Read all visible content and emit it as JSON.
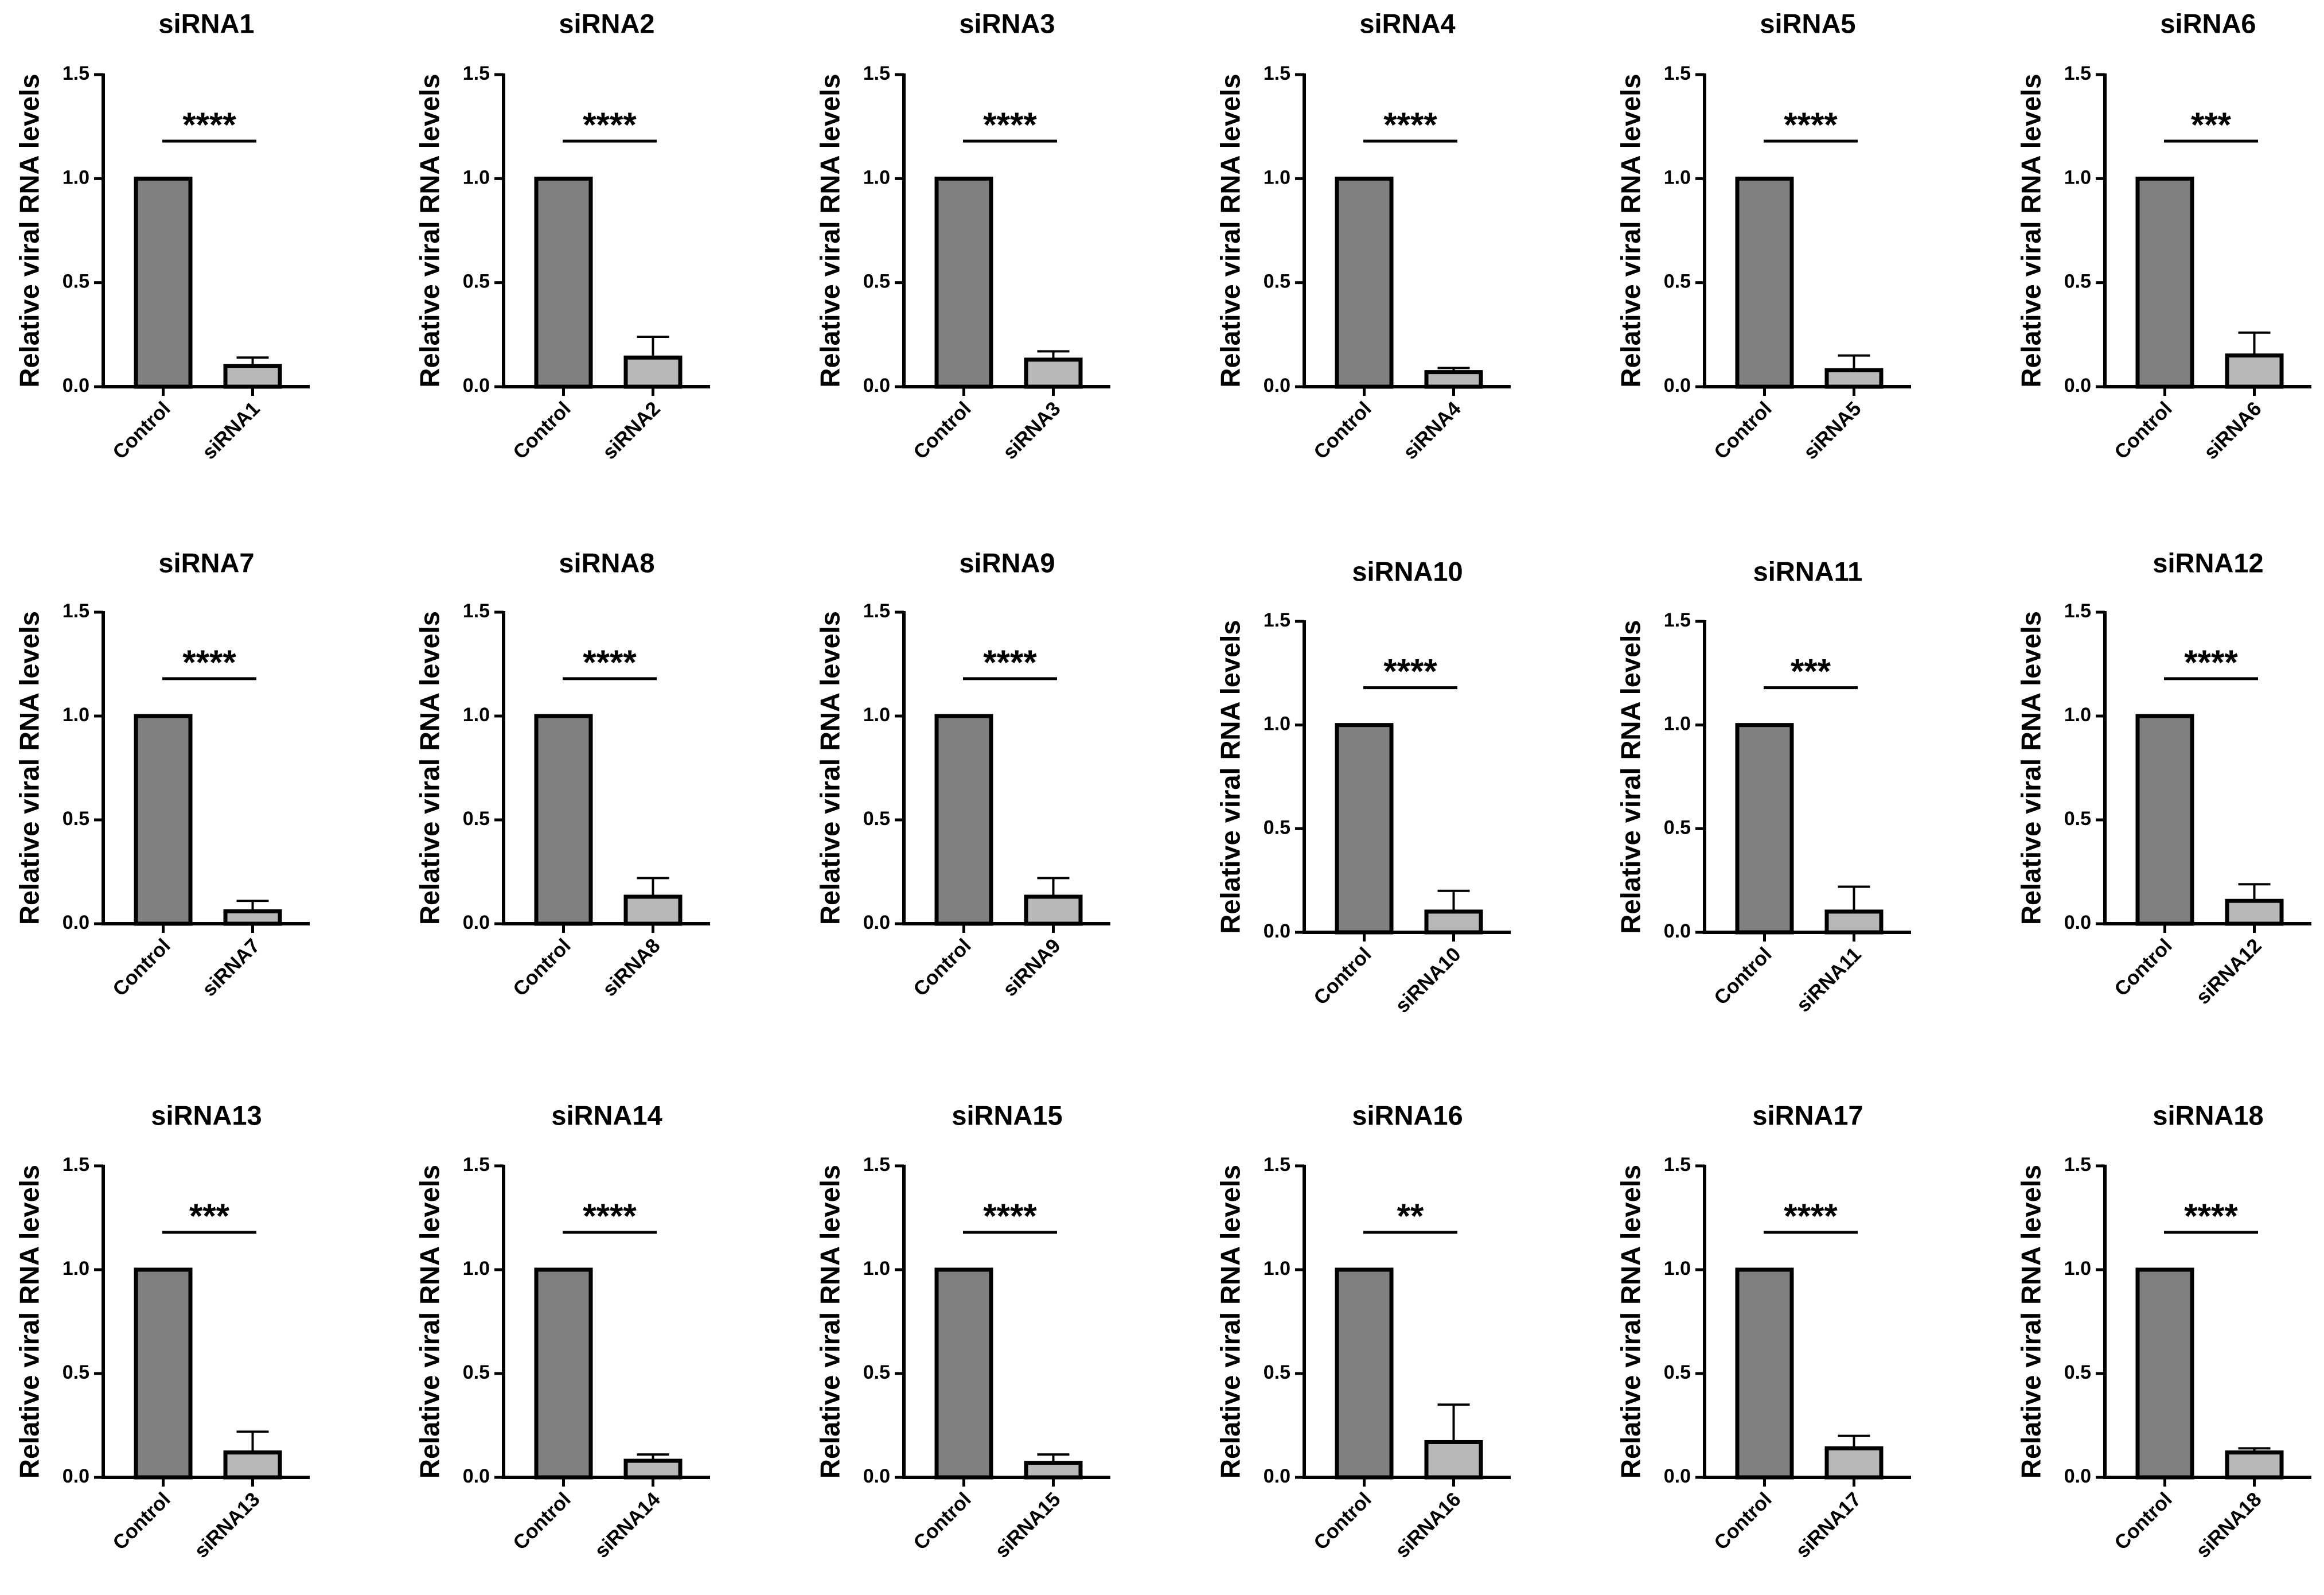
{
  "chart_data": [
    {
      "type": "bar",
      "title": "siRNA1",
      "ylabel": "Relative viral RNA levels",
      "categories": [
        "Control",
        "siRNA1"
      ],
      "values": [
        1.0,
        0.1
      ],
      "errors": [
        0,
        0.04
      ],
      "ylim": [
        0,
        1.5
      ],
      "yticks": [
        "0.0",
        "0.5",
        "1.0",
        "1.5"
      ],
      "significance": "****",
      "colors": [
        "#808080",
        "#b8b8b8"
      ]
    },
    {
      "type": "bar",
      "title": "siRNA2",
      "ylabel": "Relative viral RNA levels",
      "categories": [
        "Control",
        "siRNA2"
      ],
      "values": [
        1.0,
        0.14
      ],
      "errors": [
        0,
        0.1
      ],
      "ylim": [
        0,
        1.5
      ],
      "yticks": [
        "0.0",
        "0.5",
        "1.0",
        "1.5"
      ],
      "significance": "****",
      "colors": [
        "#808080",
        "#b8b8b8"
      ]
    },
    {
      "type": "bar",
      "title": "siRNA3",
      "ylabel": "Relative viral RNA levels",
      "categories": [
        "Control",
        "siRNA3"
      ],
      "values": [
        1.0,
        0.13
      ],
      "errors": [
        0,
        0.04
      ],
      "ylim": [
        0,
        1.5
      ],
      "yticks": [
        "0.0",
        "0.5",
        "1.0",
        "1.5"
      ],
      "significance": "****",
      "colors": [
        "#808080",
        "#b8b8b8"
      ]
    },
    {
      "type": "bar",
      "title": "siRNA4",
      "ylabel": "Relative viral RNA levels",
      "categories": [
        "Control",
        "siRNA4"
      ],
      "values": [
        1.0,
        0.07
      ],
      "errors": [
        0,
        0.02
      ],
      "ylim": [
        0,
        1.5
      ],
      "yticks": [
        "0.0",
        "0.5",
        "1.0",
        "1.5"
      ],
      "significance": "****",
      "colors": [
        "#808080",
        "#b8b8b8"
      ]
    },
    {
      "type": "bar",
      "title": "siRNA5",
      "ylabel": "Relative viral RNA levels",
      "categories": [
        "Control",
        "siRNA5"
      ],
      "values": [
        1.0,
        0.08
      ],
      "errors": [
        0,
        0.07
      ],
      "ylim": [
        0,
        1.5
      ],
      "yticks": [
        "0.0",
        "0.5",
        "1.0",
        "1.5"
      ],
      "significance": "****",
      "colors": [
        "#808080",
        "#b8b8b8"
      ]
    },
    {
      "type": "bar",
      "title": "siRNA6",
      "ylabel": "Relative viral RNA levels",
      "categories": [
        "Control",
        "siRNA6"
      ],
      "values": [
        1.0,
        0.15
      ],
      "errors": [
        0,
        0.11
      ],
      "ylim": [
        0,
        1.5
      ],
      "yticks": [
        "0.0",
        "0.5",
        "1.0",
        "1.5"
      ],
      "significance": "***",
      "colors": [
        "#808080",
        "#b8b8b8"
      ]
    },
    {
      "type": "bar",
      "title": "siRNA7",
      "ylabel": "Relative viral RNA levels",
      "categories": [
        "Control",
        "siRNA7"
      ],
      "values": [
        1.0,
        0.06
      ],
      "errors": [
        0,
        0.05
      ],
      "ylim": [
        0,
        1.5
      ],
      "yticks": [
        "0.0",
        "0.5",
        "1.0",
        "1.5"
      ],
      "significance": "****",
      "colors": [
        "#808080",
        "#b8b8b8"
      ]
    },
    {
      "type": "bar",
      "title": "siRNA8",
      "ylabel": "Relative viral RNA levels",
      "categories": [
        "Control",
        "siRNA8"
      ],
      "values": [
        1.0,
        0.13
      ],
      "errors": [
        0,
        0.09
      ],
      "ylim": [
        0,
        1.5
      ],
      "yticks": [
        "0.0",
        "0.5",
        "1.0",
        "1.5"
      ],
      "significance": "****",
      "colors": [
        "#808080",
        "#b8b8b8"
      ]
    },
    {
      "type": "bar",
      "title": "siRNA9",
      "ylabel": "Relative viral RNA levels",
      "categories": [
        "Control",
        "siRNA9"
      ],
      "values": [
        1.0,
        0.13
      ],
      "errors": [
        0,
        0.09
      ],
      "ylim": [
        0,
        1.5
      ],
      "yticks": [
        "0.0",
        "0.5",
        "1.0",
        "1.5"
      ],
      "significance": "****",
      "colors": [
        "#808080",
        "#b8b8b8"
      ]
    },
    {
      "type": "bar",
      "title": "siRNA10",
      "ylabel": "Relative viral RNA levels",
      "categories": [
        "Control",
        "siRNA10"
      ],
      "values": [
        1.0,
        0.1
      ],
      "errors": [
        0,
        0.1
      ],
      "ylim": [
        0,
        1.5
      ],
      "yticks": [
        "0.0",
        "0.5",
        "1.0",
        "1.5"
      ],
      "significance": "****",
      "colors": [
        "#808080",
        "#b8b8b8"
      ]
    },
    {
      "type": "bar",
      "title": "siRNA11",
      "ylabel": "Relative viral RNA levels",
      "categories": [
        "Control",
        "siRNA11"
      ],
      "values": [
        1.0,
        0.1
      ],
      "errors": [
        0,
        0.12
      ],
      "ylim": [
        0,
        1.5
      ],
      "yticks": [
        "0.0",
        "0.5",
        "1.0",
        "1.5"
      ],
      "significance": "***",
      "colors": [
        "#808080",
        "#b8b8b8"
      ]
    },
    {
      "type": "bar",
      "title": "siRNA12",
      "ylabel": "Relative viral RNA levels",
      "categories": [
        "Control",
        "siRNA12"
      ],
      "values": [
        1.0,
        0.11
      ],
      "errors": [
        0,
        0.08
      ],
      "ylim": [
        0,
        1.5
      ],
      "yticks": [
        "0.0",
        "0.5",
        "1.0",
        "1.5"
      ],
      "significance": "****",
      "colors": [
        "#808080",
        "#b8b8b8"
      ]
    },
    {
      "type": "bar",
      "title": "siRNA13",
      "ylabel": "Relative viral RNA levels",
      "categories": [
        "Control",
        "siRNA13"
      ],
      "values": [
        1.0,
        0.12
      ],
      "errors": [
        0,
        0.1
      ],
      "ylim": [
        0,
        1.5
      ],
      "yticks": [
        "0.0",
        "0.5",
        "1.0",
        "1.5"
      ],
      "significance": "***",
      "colors": [
        "#808080",
        "#b8b8b8"
      ]
    },
    {
      "type": "bar",
      "title": "siRNA14",
      "ylabel": "Relative viral RNA levels",
      "categories": [
        "Control",
        "siRNA14"
      ],
      "values": [
        1.0,
        0.08
      ],
      "errors": [
        0,
        0.03
      ],
      "ylim": [
        0,
        1.5
      ],
      "yticks": [
        "0.0",
        "0.5",
        "1.0",
        "1.5"
      ],
      "significance": "****",
      "colors": [
        "#808080",
        "#b8b8b8"
      ]
    },
    {
      "type": "bar",
      "title": "siRNA15",
      "ylabel": "Relative viral RNA levels",
      "categories": [
        "Control",
        "siRNA15"
      ],
      "values": [
        1.0,
        0.07
      ],
      "errors": [
        0,
        0.04
      ],
      "ylim": [
        0,
        1.5
      ],
      "yticks": [
        "0.0",
        "0.5",
        "1.0",
        "1.5"
      ],
      "significance": "****",
      "colors": [
        "#808080",
        "#b8b8b8"
      ]
    },
    {
      "type": "bar",
      "title": "siRNA16",
      "ylabel": "Relative viral RNA levels",
      "categories": [
        "Control",
        "siRNA16"
      ],
      "values": [
        1.0,
        0.17
      ],
      "errors": [
        0,
        0.18
      ],
      "ylim": [
        0,
        1.5
      ],
      "yticks": [
        "0.0",
        "0.5",
        "1.0",
        "1.5"
      ],
      "significance": "**",
      "colors": [
        "#808080",
        "#b8b8b8"
      ]
    },
    {
      "type": "bar",
      "title": "siRNA17",
      "ylabel": "Relative viral RNA levels",
      "categories": [
        "Control",
        "siRNA17"
      ],
      "values": [
        1.0,
        0.14
      ],
      "errors": [
        0,
        0.06
      ],
      "ylim": [
        0,
        1.5
      ],
      "yticks": [
        "0.0",
        "0.5",
        "1.0",
        "1.5"
      ],
      "significance": "****",
      "colors": [
        "#808080",
        "#b8b8b8"
      ]
    },
    {
      "type": "bar",
      "title": "siRNA18",
      "ylabel": "Relative viral RNA levels",
      "categories": [
        "Control",
        "siRNA18"
      ],
      "values": [
        1.0,
        0.12
      ],
      "errors": [
        0,
        0.02
      ],
      "ylim": [
        0,
        1.5
      ],
      "yticks": [
        "0.0",
        "0.5",
        "1.0",
        "1.5"
      ],
      "significance": "****",
      "colors": [
        "#808080",
        "#b8b8b8"
      ]
    }
  ]
}
